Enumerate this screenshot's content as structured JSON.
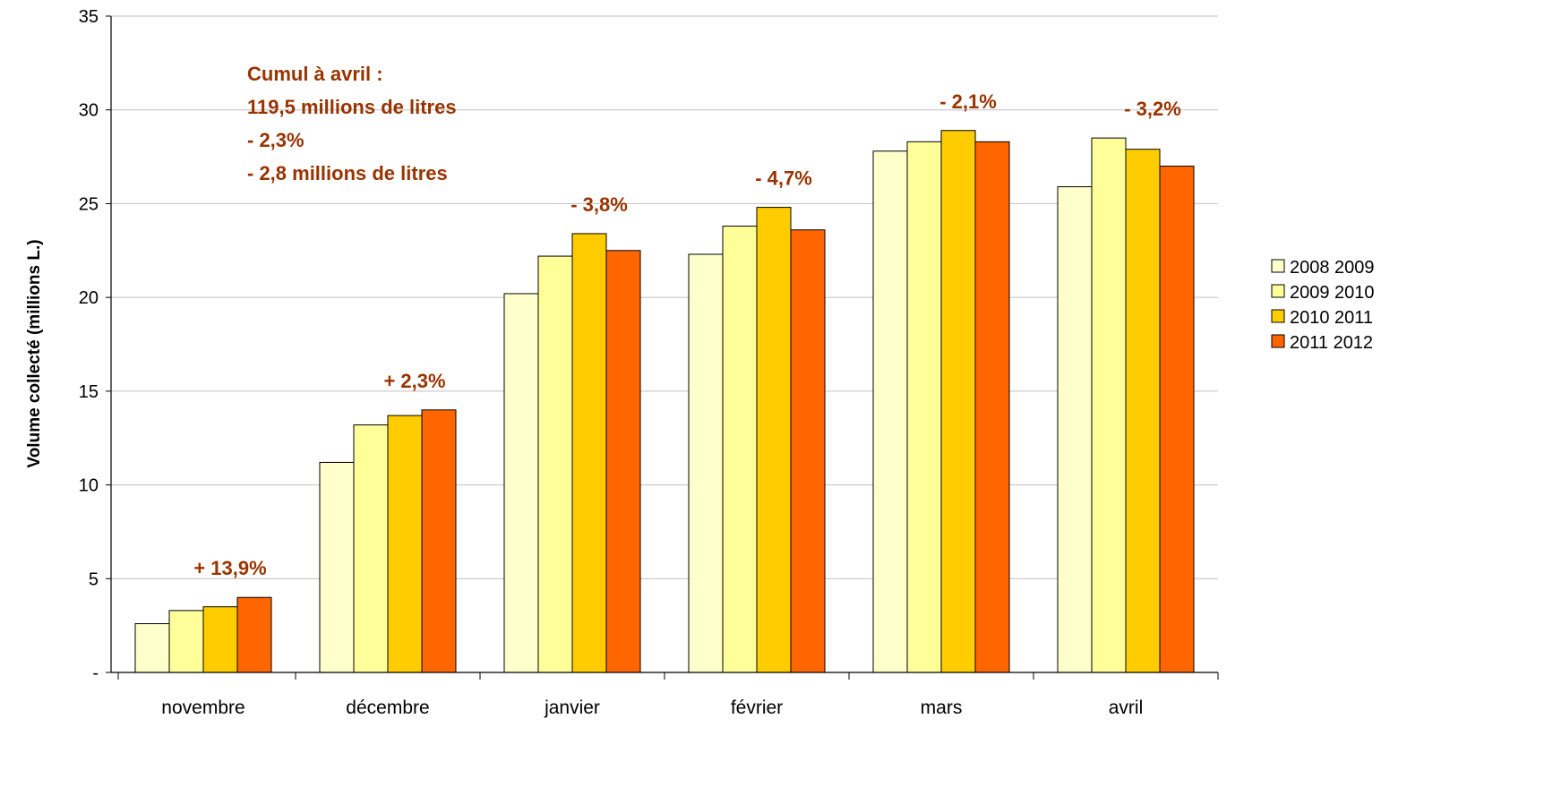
{
  "chart_data": {
    "type": "bar",
    "title": "",
    "xlabel": "",
    "ylabel": "Volume collecté (millions L.)",
    "ylim": [
      0,
      35
    ],
    "yticks": [
      0,
      5,
      10,
      15,
      20,
      25,
      30,
      35
    ],
    "ytick_labels": [
      "-",
      "5",
      "10",
      "15",
      "20",
      "25",
      "30",
      "35"
    ],
    "grid": true,
    "legend_position": "right",
    "categories": [
      "novembre",
      "décembre",
      "janvier",
      "février",
      "mars",
      "avril"
    ],
    "series": [
      {
        "name": "2008 2009",
        "color": "#ffffcc",
        "values": [
          2.6,
          11.2,
          20.2,
          22.3,
          27.8,
          25.9
        ]
      },
      {
        "name": "2009 2010",
        "color": "#ffff99",
        "values": [
          3.3,
          13.2,
          22.2,
          23.8,
          28.3,
          28.5
        ]
      },
      {
        "name": "2010 2011",
        "color": "#ffcc00",
        "values": [
          3.5,
          13.7,
          23.4,
          24.8,
          28.9,
          27.9
        ]
      },
      {
        "name": "2011 2012",
        "color": "#ff6600",
        "values": [
          4.0,
          14.0,
          22.5,
          23.6,
          28.3,
          27.0
        ]
      }
    ],
    "data_labels": [
      "+ 13,9%",
      "+ 2,3%",
      "- 3,8%",
      "- 4,7%",
      "- 2,1%",
      "- 3,2%"
    ],
    "annotation_lines": [
      "Cumul à avril :",
      "119,5 millions de litres",
      "- 2,3%",
      "- 2,8 millions de litres"
    ],
    "annotation_color": "#993300"
  }
}
